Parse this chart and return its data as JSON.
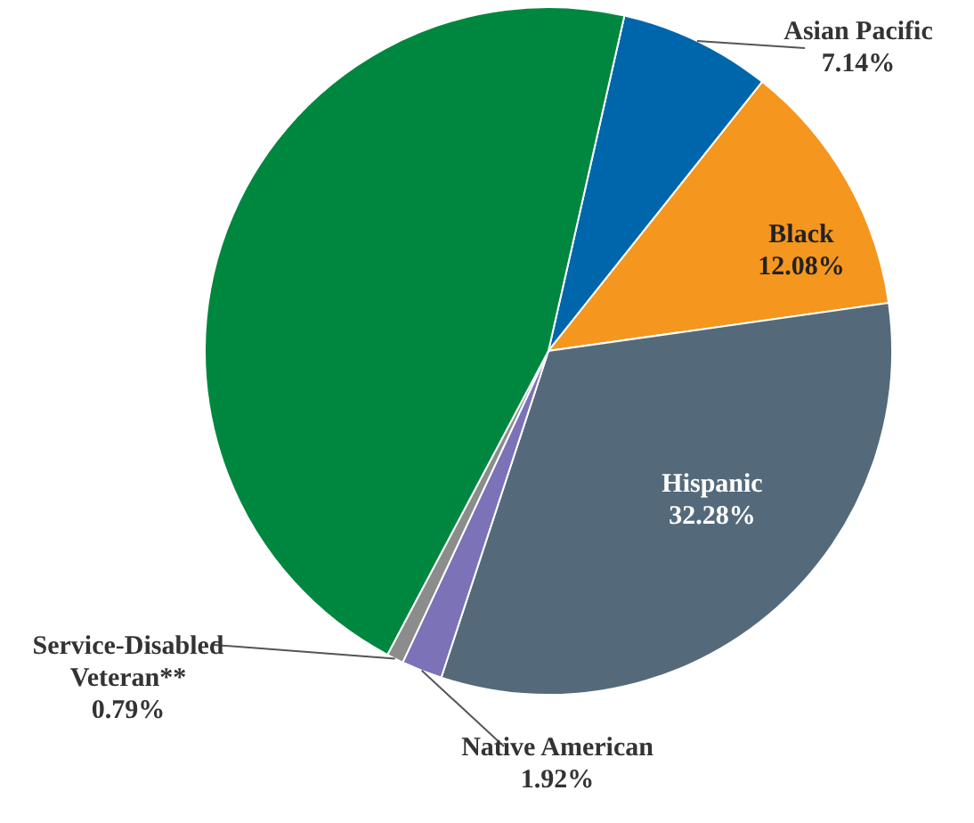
{
  "chart_data": {
    "type": "pie",
    "categories": [
      "Asian Pacific",
      "Black",
      "Hispanic",
      "Native American",
      "Service-Disabled Veteran**",
      null
    ],
    "values": [
      7.14,
      12.08,
      32.28,
      1.92,
      0.79,
      45.79
    ],
    "colors": [
      "#0066ac",
      "#f5961e",
      "#546a7b",
      "#7b72b8",
      "#8c8c8c",
      "#00873f"
    ],
    "value_labels": [
      "7.14%",
      "12.08%",
      "32.28%",
      "1.92%",
      "0.79%",
      null
    ]
  }
}
